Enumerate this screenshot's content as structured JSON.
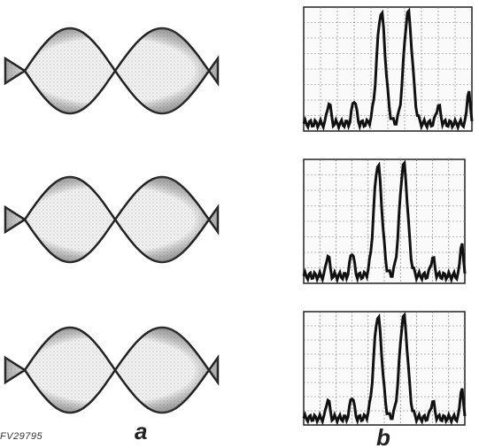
{
  "figure_id": "FV29795",
  "panel_labels": {
    "a": "a",
    "b": "b"
  }
}
